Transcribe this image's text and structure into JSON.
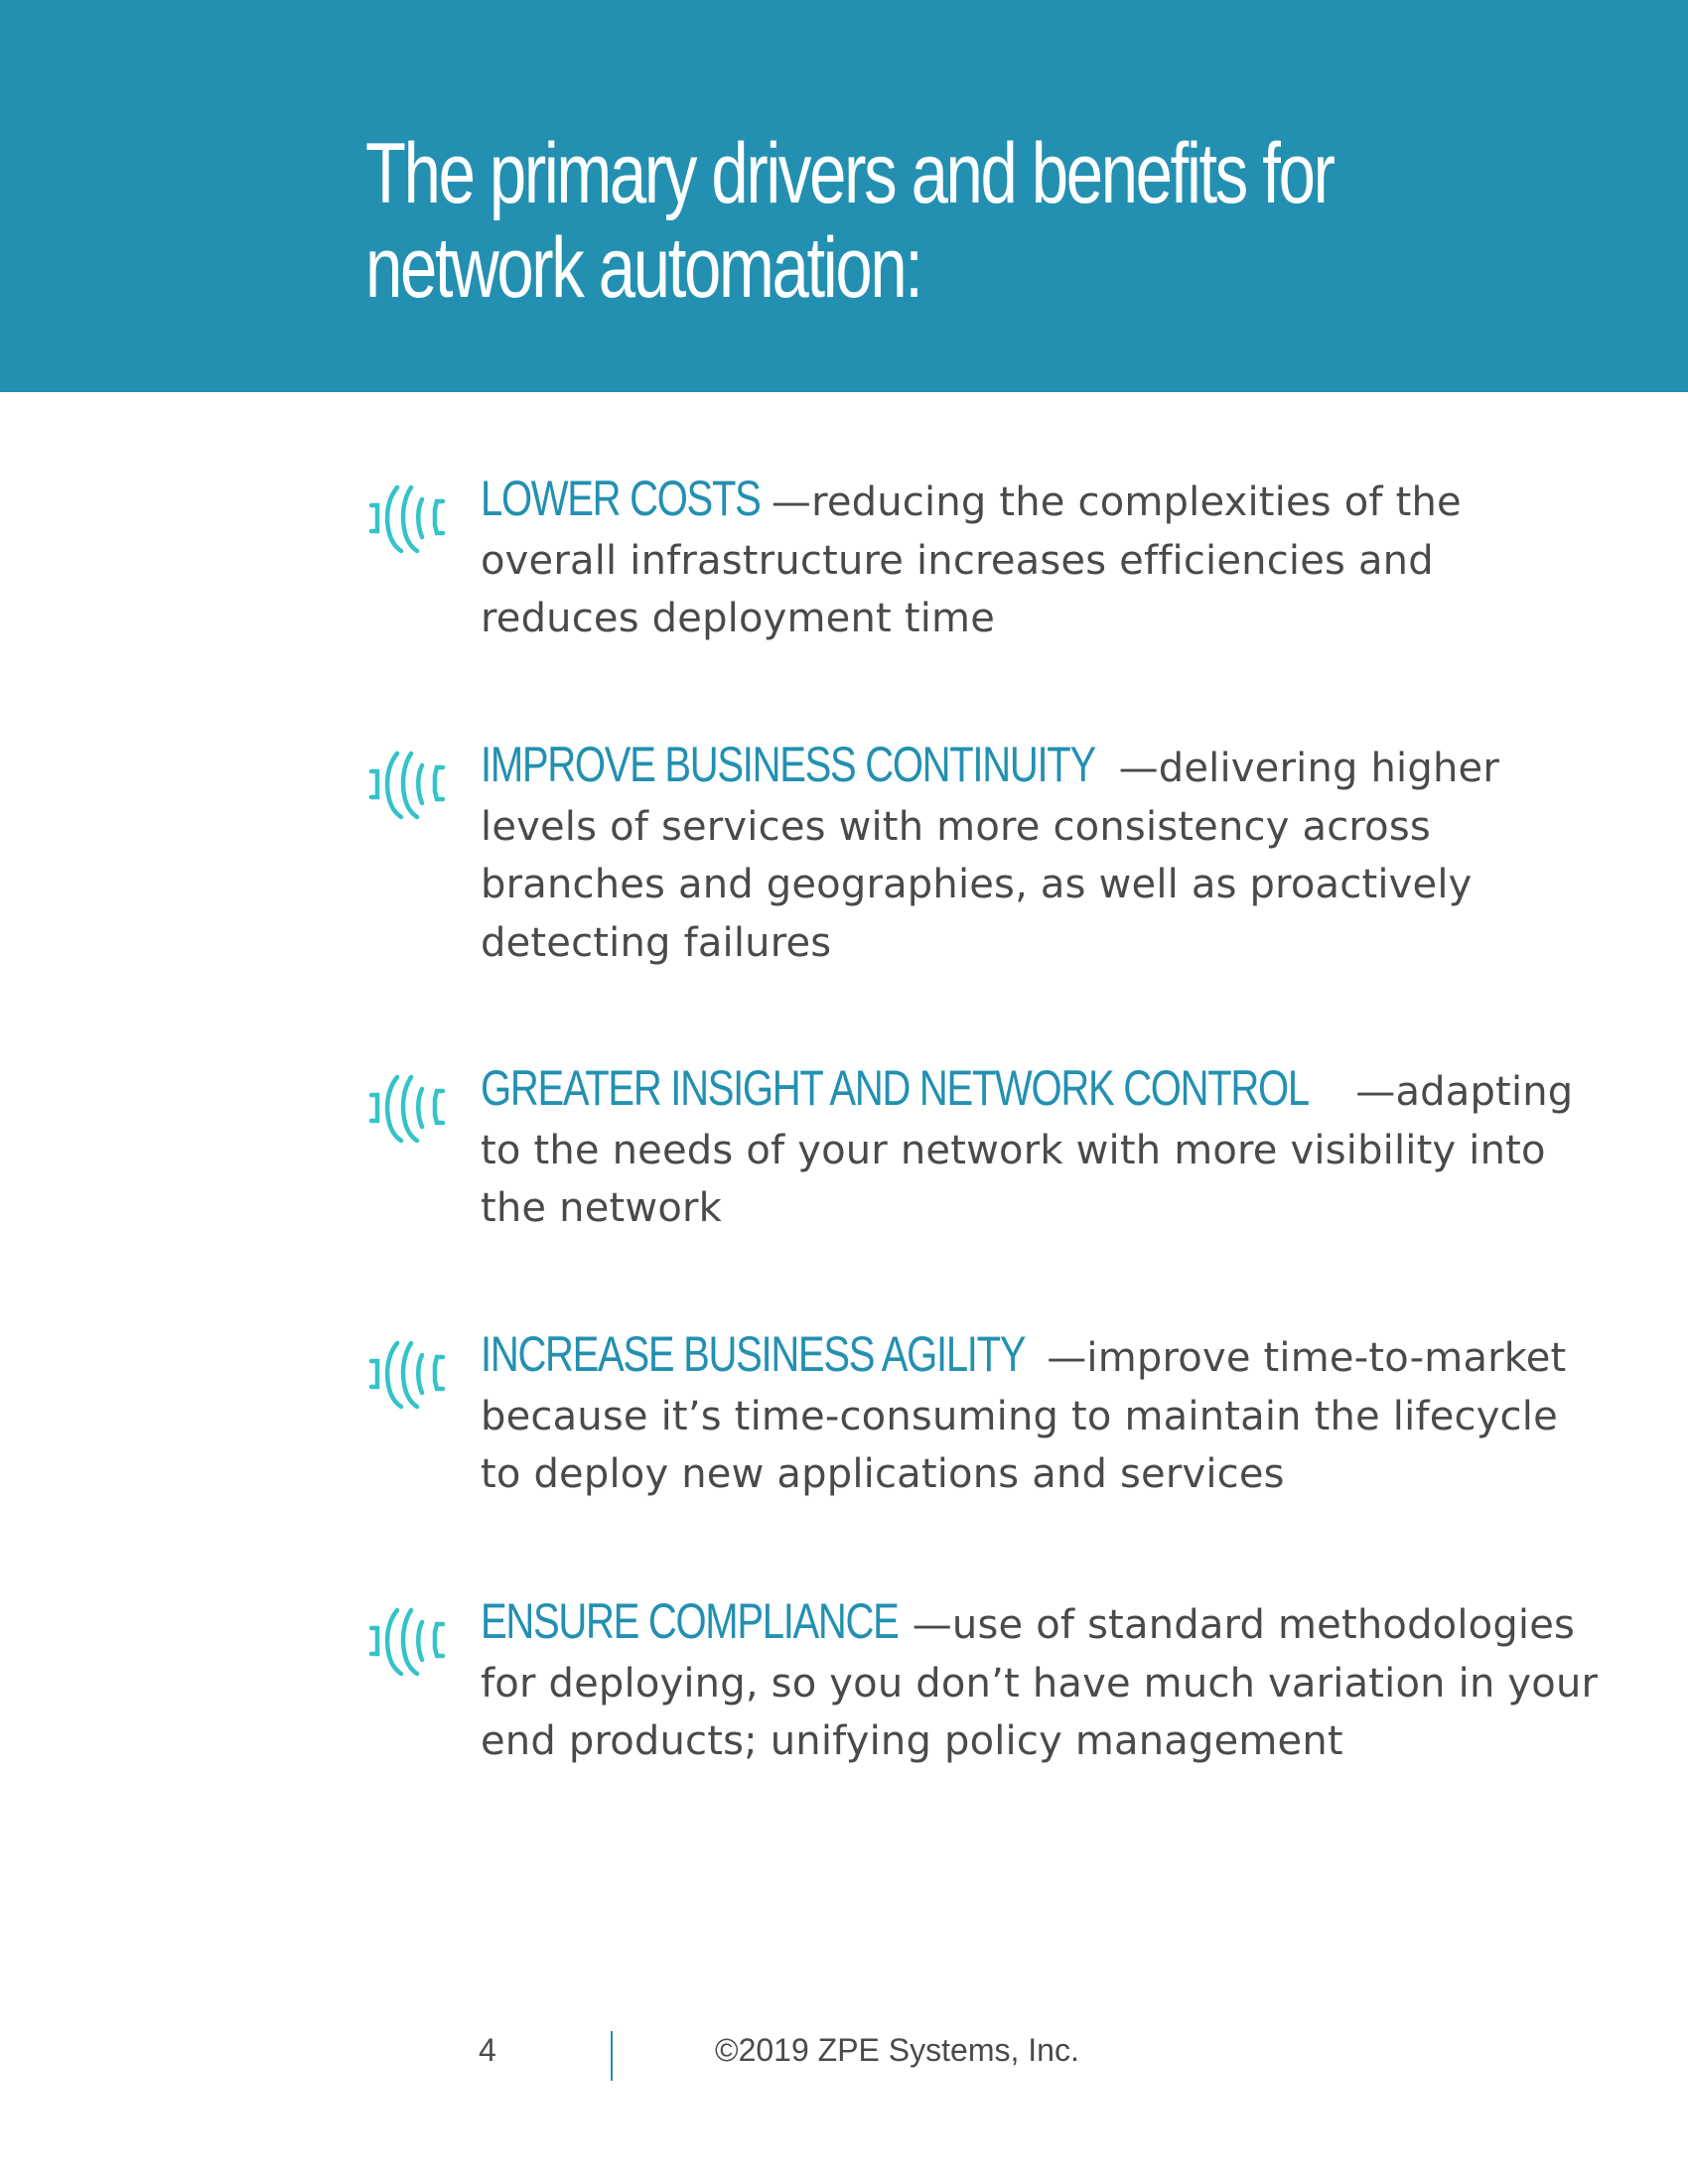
{
  "header": {
    "title_line1": "The primary drivers and benefits for",
    "title_line2": "network automation:"
  },
  "colors": {
    "brand_blue": "#2390b1",
    "icon_teal": "#33c3c9",
    "body_text": "#4a4a4a"
  },
  "benefits": [
    {
      "heading": "LOWER COSTS",
      "description": "—reducing the complexities of the overall infrastructure increases efficiencies and reduces deployment time",
      "icon": "fingerprint-icon"
    },
    {
      "heading": "IMPROVE BUSINESS CONTINUITY",
      "description": "—delivering higher levels of services with more consistency across branches and geographies, as well as proactively detecting failures",
      "icon": "fingerprint-icon"
    },
    {
      "heading": "GREATER INSIGHT AND NETWORK CONTROL",
      "description": "—adapting to the needs of your network with more visibility into the network",
      "icon": "fingerprint-icon"
    },
    {
      "heading": "INCREASE BUSINESS AGILITY",
      "description": "—improve time-to-market because it’s time-consuming to maintain the lifecycle to deploy new applications and services",
      "icon": "fingerprint-icon"
    },
    {
      "heading": "ENSURE COMPLIANCE",
      "description": "—use of standard methodologies for deploying, so you don’t have much variation in your end products; unifying policy management",
      "icon": "fingerprint-icon"
    }
  ],
  "footer": {
    "page_number": "4",
    "copyright": "©2019 ZPE Systems, Inc."
  }
}
